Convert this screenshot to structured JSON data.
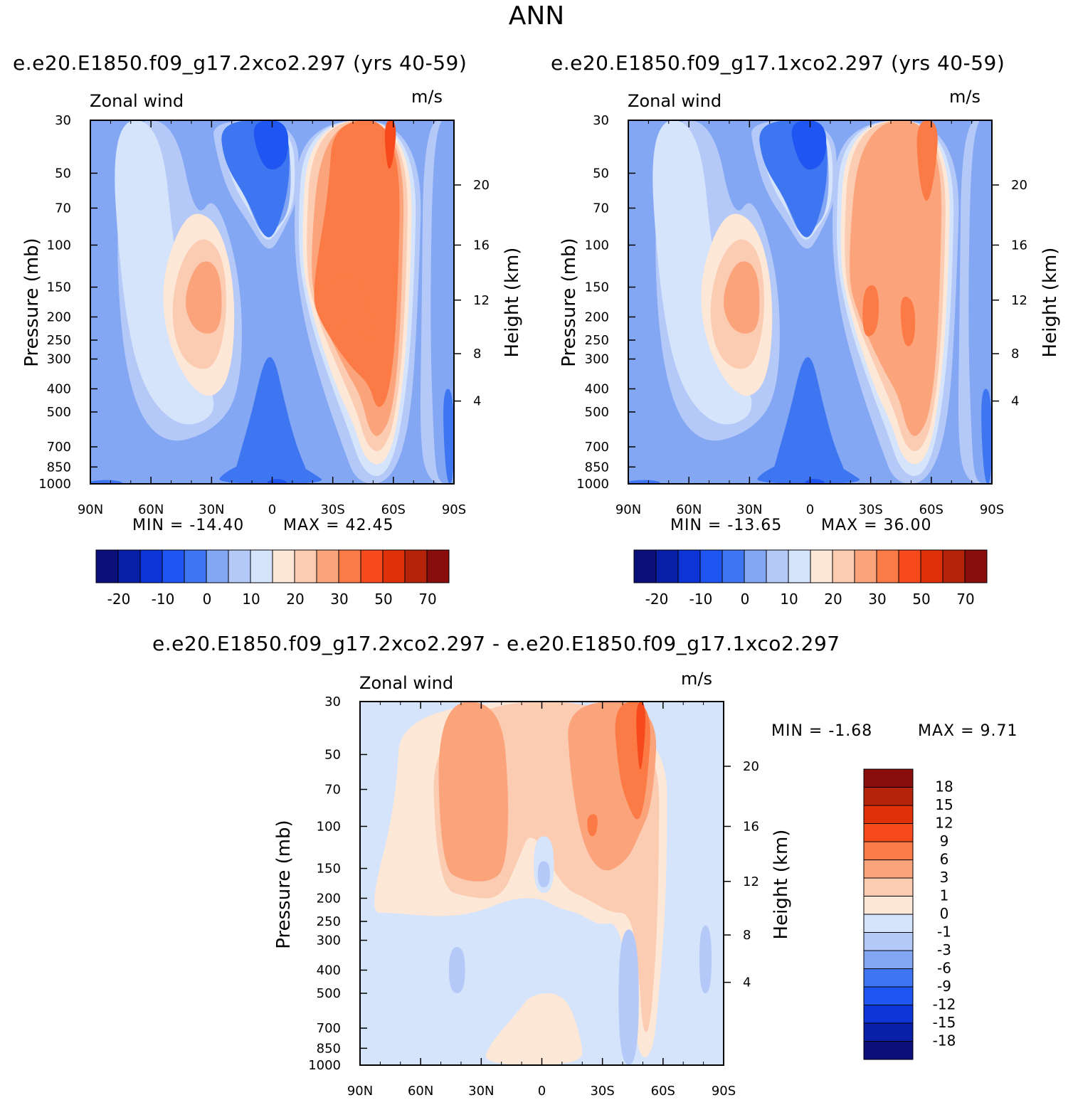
{
  "page_title": "ANN",
  "colors": {
    "c-22": "#0a0f7a",
    "c-18": "#0a1fa8",
    "c-14": "#0d34d6",
    "c-10": "#1f55f0",
    "c-5": "#3e76f2",
    "c0": "#84a7f4",
    "c5": "#b4c9f8",
    "c10": "#d6e4fb",
    "c15": "#fde7d6",
    "c20": "#fbcbb2",
    "c25": "#fba47b",
    "c30": "#fb7a45",
    "c40": "#f64a1c",
    "c50": "#df300a",
    "c60": "#b5230a",
    "c70": "#8a0d0d"
  },
  "chart_data": [
    {
      "type": "heatmap",
      "title": "e.e20.E1850.f09_g17.2xco2.297 (yrs 40-59)",
      "variable": "Zonal wind",
      "units": "m/s",
      "ylabel": "Pressure (mb)",
      "ylabel_right": "Height (km)",
      "x_ticks": [
        "90N",
        "60N",
        "30N",
        "0",
        "30S",
        "60S",
        "90S"
      ],
      "y_ticks": [
        "30",
        "50",
        "70",
        "100",
        "150",
        "200",
        "250",
        "300",
        "400",
        "500",
        "700",
        "850",
        "1000"
      ],
      "y_right_ticks": [
        "20",
        "16",
        "12",
        "8",
        "4"
      ],
      "min_label": "MIN = -14.40",
      "max_label": "MAX = 42.45",
      "min": -14.4,
      "max": 42.45,
      "levels_labels": [
        "-20",
        "-10",
        "0",
        "10",
        "20",
        "30",
        "50",
        "70"
      ],
      "jets": [
        {
          "lat": 35,
          "p": 175,
          "value": 25
        },
        {
          "lat": -43,
          "p": 175,
          "value": 30
        },
        {
          "lat": -55,
          "p": 35,
          "value": 42.45
        }
      ]
    },
    {
      "type": "heatmap",
      "title": "e.e20.E1850.f09_g17.1xco2.297 (yrs 40-59)",
      "variable": "Zonal wind",
      "units": "m/s",
      "ylabel": "Pressure (mb)",
      "ylabel_right": "Height (km)",
      "x_ticks": [
        "90N",
        "60N",
        "30N",
        "0",
        "30S",
        "60S",
        "90S"
      ],
      "y_ticks": [
        "30",
        "50",
        "70",
        "100",
        "150",
        "200",
        "250",
        "300",
        "400",
        "500",
        "700",
        "850",
        "1000"
      ],
      "y_right_ticks": [
        "20",
        "16",
        "12",
        "8",
        "4"
      ],
      "min_label": "MIN = -13.65",
      "max_label": "MAX = 36.00",
      "min": -13.65,
      "max": 36.0,
      "levels_labels": [
        "-20",
        "-10",
        "0",
        "10",
        "20",
        "30",
        "50",
        "70"
      ],
      "jets": [
        {
          "lat": 33,
          "p": 190,
          "value": 25
        },
        {
          "lat": -30,
          "p": 190,
          "value": 30
        },
        {
          "lat": -48,
          "p": 200,
          "value": 30
        },
        {
          "lat": -58,
          "p": 40,
          "value": 36
        }
      ]
    },
    {
      "type": "heatmap",
      "title": "e.e20.E1850.f09_g17.2xco2.297 - e.e20.E1850.f09_g17.1xco2.297",
      "variable": "Zonal wind",
      "units": "m/s",
      "ylabel": "Pressure (mb)",
      "ylabel_right": "Height (km)",
      "x_ticks": [
        "90N",
        "60N",
        "30N",
        "0",
        "30S",
        "60S",
        "90S"
      ],
      "y_ticks": [
        "30",
        "50",
        "70",
        "100",
        "150",
        "200",
        "250",
        "300",
        "400",
        "500",
        "700",
        "850",
        "1000"
      ],
      "y_right_ticks": [
        "20",
        "16",
        "12",
        "8",
        "4"
      ],
      "min_label": "MIN = -1.68",
      "max_label": "MAX = 9.71",
      "min": -1.68,
      "max": 9.71,
      "levels_labels": [
        "18",
        "15",
        "12",
        "9",
        "6",
        "3",
        "1",
        "0",
        "-1",
        "-3",
        "-6",
        "-9",
        "-12",
        "-15",
        "-18"
      ]
    }
  ]
}
